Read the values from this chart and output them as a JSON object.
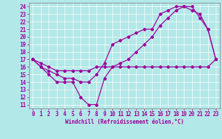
{
  "xlabel": "Windchill (Refroidissement éolien,°C)",
  "line_color": "#990099",
  "bg_color": "#b3e8e8",
  "xlim": [
    -0.5,
    23.5
  ],
  "ylim": [
    10.5,
    24.5
  ],
  "xticks": [
    0,
    1,
    2,
    3,
    4,
    5,
    6,
    7,
    8,
    9,
    10,
    11,
    12,
    13,
    14,
    15,
    16,
    17,
    18,
    19,
    20,
    21,
    22,
    23
  ],
  "yticks": [
    11,
    12,
    13,
    14,
    15,
    16,
    17,
    18,
    19,
    20,
    21,
    22,
    23,
    24
  ],
  "line1_x": [
    0,
    1,
    2,
    3,
    4,
    5,
    6,
    7,
    8,
    9,
    10,
    11,
    12,
    13,
    14,
    15,
    16,
    17,
    18,
    19,
    20,
    21,
    22,
    23
  ],
  "line1_y": [
    17,
    16,
    15,
    14,
    14,
    14,
    12,
    11,
    11,
    14.5,
    16,
    16.5,
    17,
    18,
    19,
    20,
    21.5,
    22.5,
    23.5,
    24,
    24,
    22.5,
    21,
    17
  ],
  "line2_x": [
    0,
    1,
    2,
    3,
    4,
    5,
    6,
    7,
    8,
    9,
    10,
    11,
    12,
    13,
    14,
    15,
    16,
    17,
    18,
    19,
    20,
    21,
    22,
    23
  ],
  "line2_y": [
    17,
    16.5,
    16,
    15.5,
    15.5,
    15.5,
    15.5,
    15.5,
    16,
    16,
    16,
    16,
    16,
    16,
    16,
    16,
    16,
    16,
    16,
    16,
    16,
    16,
    16,
    17
  ],
  "line3_x": [
    0,
    1,
    2,
    3,
    4,
    5,
    6,
    7,
    8,
    9,
    10,
    11,
    12,
    13,
    14,
    15,
    16,
    17,
    18,
    19,
    20,
    21,
    22,
    23
  ],
  "line3_y": [
    17,
    16,
    15.5,
    15,
    14.5,
    14.5,
    14,
    14,
    15,
    16.5,
    19,
    19.5,
    20,
    20.5,
    21,
    21,
    23,
    23.5,
    24,
    24,
    23.5,
    23,
    21,
    17
  ],
  "tick_fontsize": 5.5,
  "label_fontsize": 5.5,
  "marker_size": 2.0,
  "linewidth": 0.9,
  "grid_color": "#ffffff",
  "spine_color": "#888888",
  "tick_color": "#990099",
  "label_color": "#990099"
}
